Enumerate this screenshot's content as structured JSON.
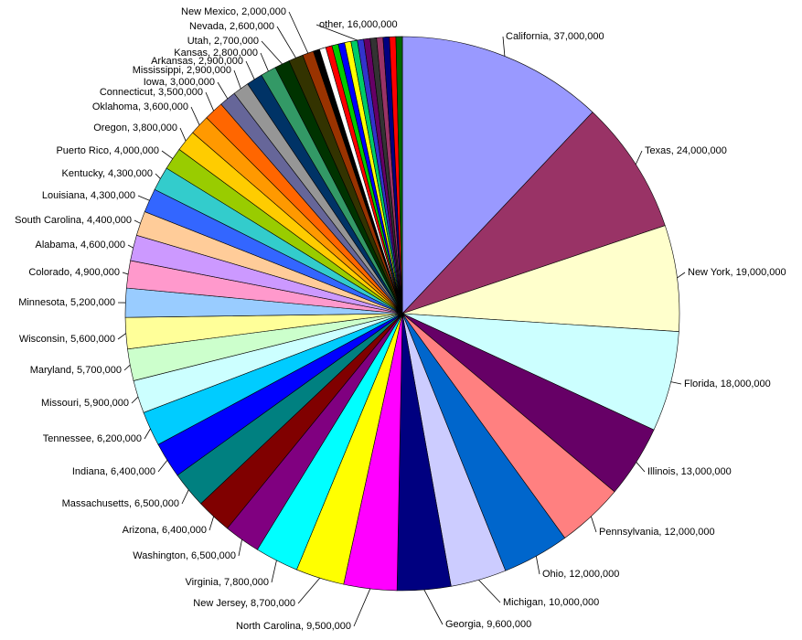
{
  "chart_data": {
    "type": "pie",
    "values": [
      37000000,
      24000000,
      19000000,
      18000000,
      13000000,
      12000000,
      12000000,
      10000000,
      9600000,
      9500000,
      8700000,
      7800000,
      6500000,
      6400000,
      6500000,
      6400000,
      6200000,
      5900000,
      5700000,
      5600000,
      5200000,
      4900000,
      4600000,
      4400000,
      4300000,
      4300000,
      4000000,
      3800000,
      3600000,
      3500000,
      3000000,
      2900000,
      2900000,
      2800000,
      2700000,
      2600000,
      2000000,
      16000000
    ],
    "value_labels": [
      "California, 37,000,000",
      "Texas, 24,000,000",
      "New York, 19,000,000",
      "Florida, 18,000,000",
      "Illinois, 13,000,000",
      "Pennsylvania, 12,000,000",
      "Ohio, 12,000,000",
      "Michigan, 10,000,000",
      "Georgia, 9,600,000",
      "North Carolina, 9,500,000",
      "New Jersey, 8,700,000",
      "Virginia, 7,800,000",
      "Washington, 6,500,000",
      "Arizona, 6,400,000",
      "Massachusetts, 6,500,000",
      "Indiana, 6,400,000",
      "Tennessee, 6,200,000",
      "Missouri, 5,900,000",
      "Maryland, 5,700,000",
      "Wisconsin, 5,600,000",
      "Minnesota, 5,200,000",
      "Colorado, 4,900,000",
      "Alabama, 4,600,000",
      "South Carolina, 4,400,000",
      "Louisiana, 4,300,000",
      "Kentucky, 4,300,000",
      "Puerto Rico, 4,000,000",
      "Oregon, 3,800,000",
      "Oklahoma, 3,600,000",
      "Connecticut, 3,500,000",
      "Iowa, 3,000,000",
      "Mississippi, 2,900,000",
      "Arkansas, 2,900,000",
      "Kansas, 2,800,000",
      "Utah, 2,700,000",
      "Nevada, 2,600,000",
      "New Mexico, 2,000,000",
      "other, 16,000,000"
    ],
    "colors": [
      "#9999ff",
      "#993366",
      "#ffffcc",
      "#ccffff",
      "#660066",
      "#ff8080",
      "#0066cc",
      "#ccccff",
      "#000080",
      "#ff00ff",
      "#ffff00",
      "#00ffff",
      "#800080",
      "#800000",
      "#008080",
      "#0000ff",
      "#00ccff",
      "#ccffff",
      "#ccffcc",
      "#ffff99",
      "#99ccff",
      "#ff99cc",
      "#cc99ff",
      "#ffcc99",
      "#3366ff",
      "#33cccc",
      "#99cc00",
      "#ffcc00",
      "#ff9900",
      "#ff6600",
      "#666699",
      "#969696",
      "#003366",
      "#339966",
      "#003300",
      "#333300",
      "#993300",
      "#333399"
    ]
  }
}
